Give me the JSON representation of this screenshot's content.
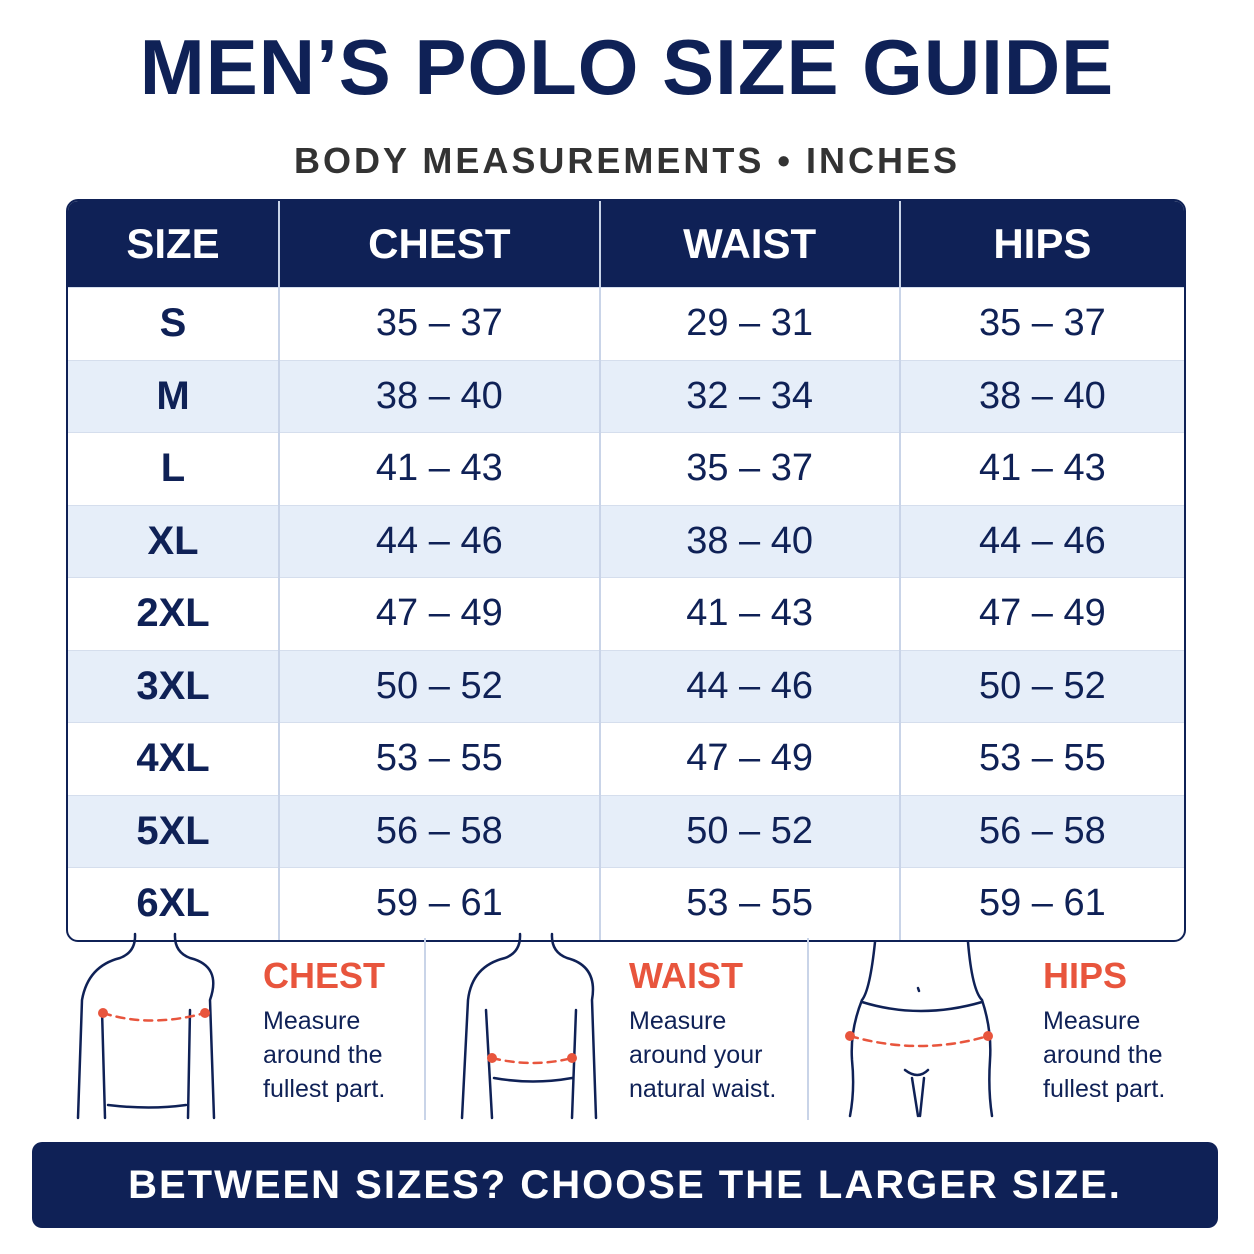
{
  "header": {
    "title": "MEN’S POLO SIZE GUIDE",
    "subtitle": "BODY MEASUREMENTS • INCHES"
  },
  "table": {
    "columns": [
      "SIZE",
      "CHEST",
      "WAIST",
      "HIPS"
    ],
    "rows": [
      [
        "S",
        "35 – 37",
        "29 – 31",
        "35 – 37"
      ],
      [
        "M",
        "38 – 40",
        "32 – 34",
        "38 – 40"
      ],
      [
        "L",
        "41 – 43",
        "35 – 37",
        "41 – 43"
      ],
      [
        "XL",
        "44 – 46",
        "38 – 40",
        "44 – 46"
      ],
      [
        "2XL",
        "47 – 49",
        "41 – 43",
        "47 – 49"
      ],
      [
        "3XL",
        "50 – 52",
        "44 – 46",
        "50 – 52"
      ],
      [
        "4XL",
        "53 – 55",
        "47 – 49",
        "53 – 55"
      ],
      [
        "5XL",
        "56 – 58",
        "50 – 52",
        "56 – 58"
      ],
      [
        "6XL",
        "59 – 61",
        "53 – 55",
        "59 – 61"
      ]
    ]
  },
  "guides": [
    {
      "label": "CHEST",
      "lines": [
        "Measure",
        "around the",
        "fullest part."
      ]
    },
    {
      "label": "WAIST",
      "lines": [
        "Measure",
        "around your",
        "natural waist."
      ]
    },
    {
      "label": "HIPS",
      "lines": [
        "Measure",
        "around the",
        "fullest part."
      ]
    }
  ],
  "footer": "BETWEEN SIZES? CHOOSE THE LARGER SIZE."
}
